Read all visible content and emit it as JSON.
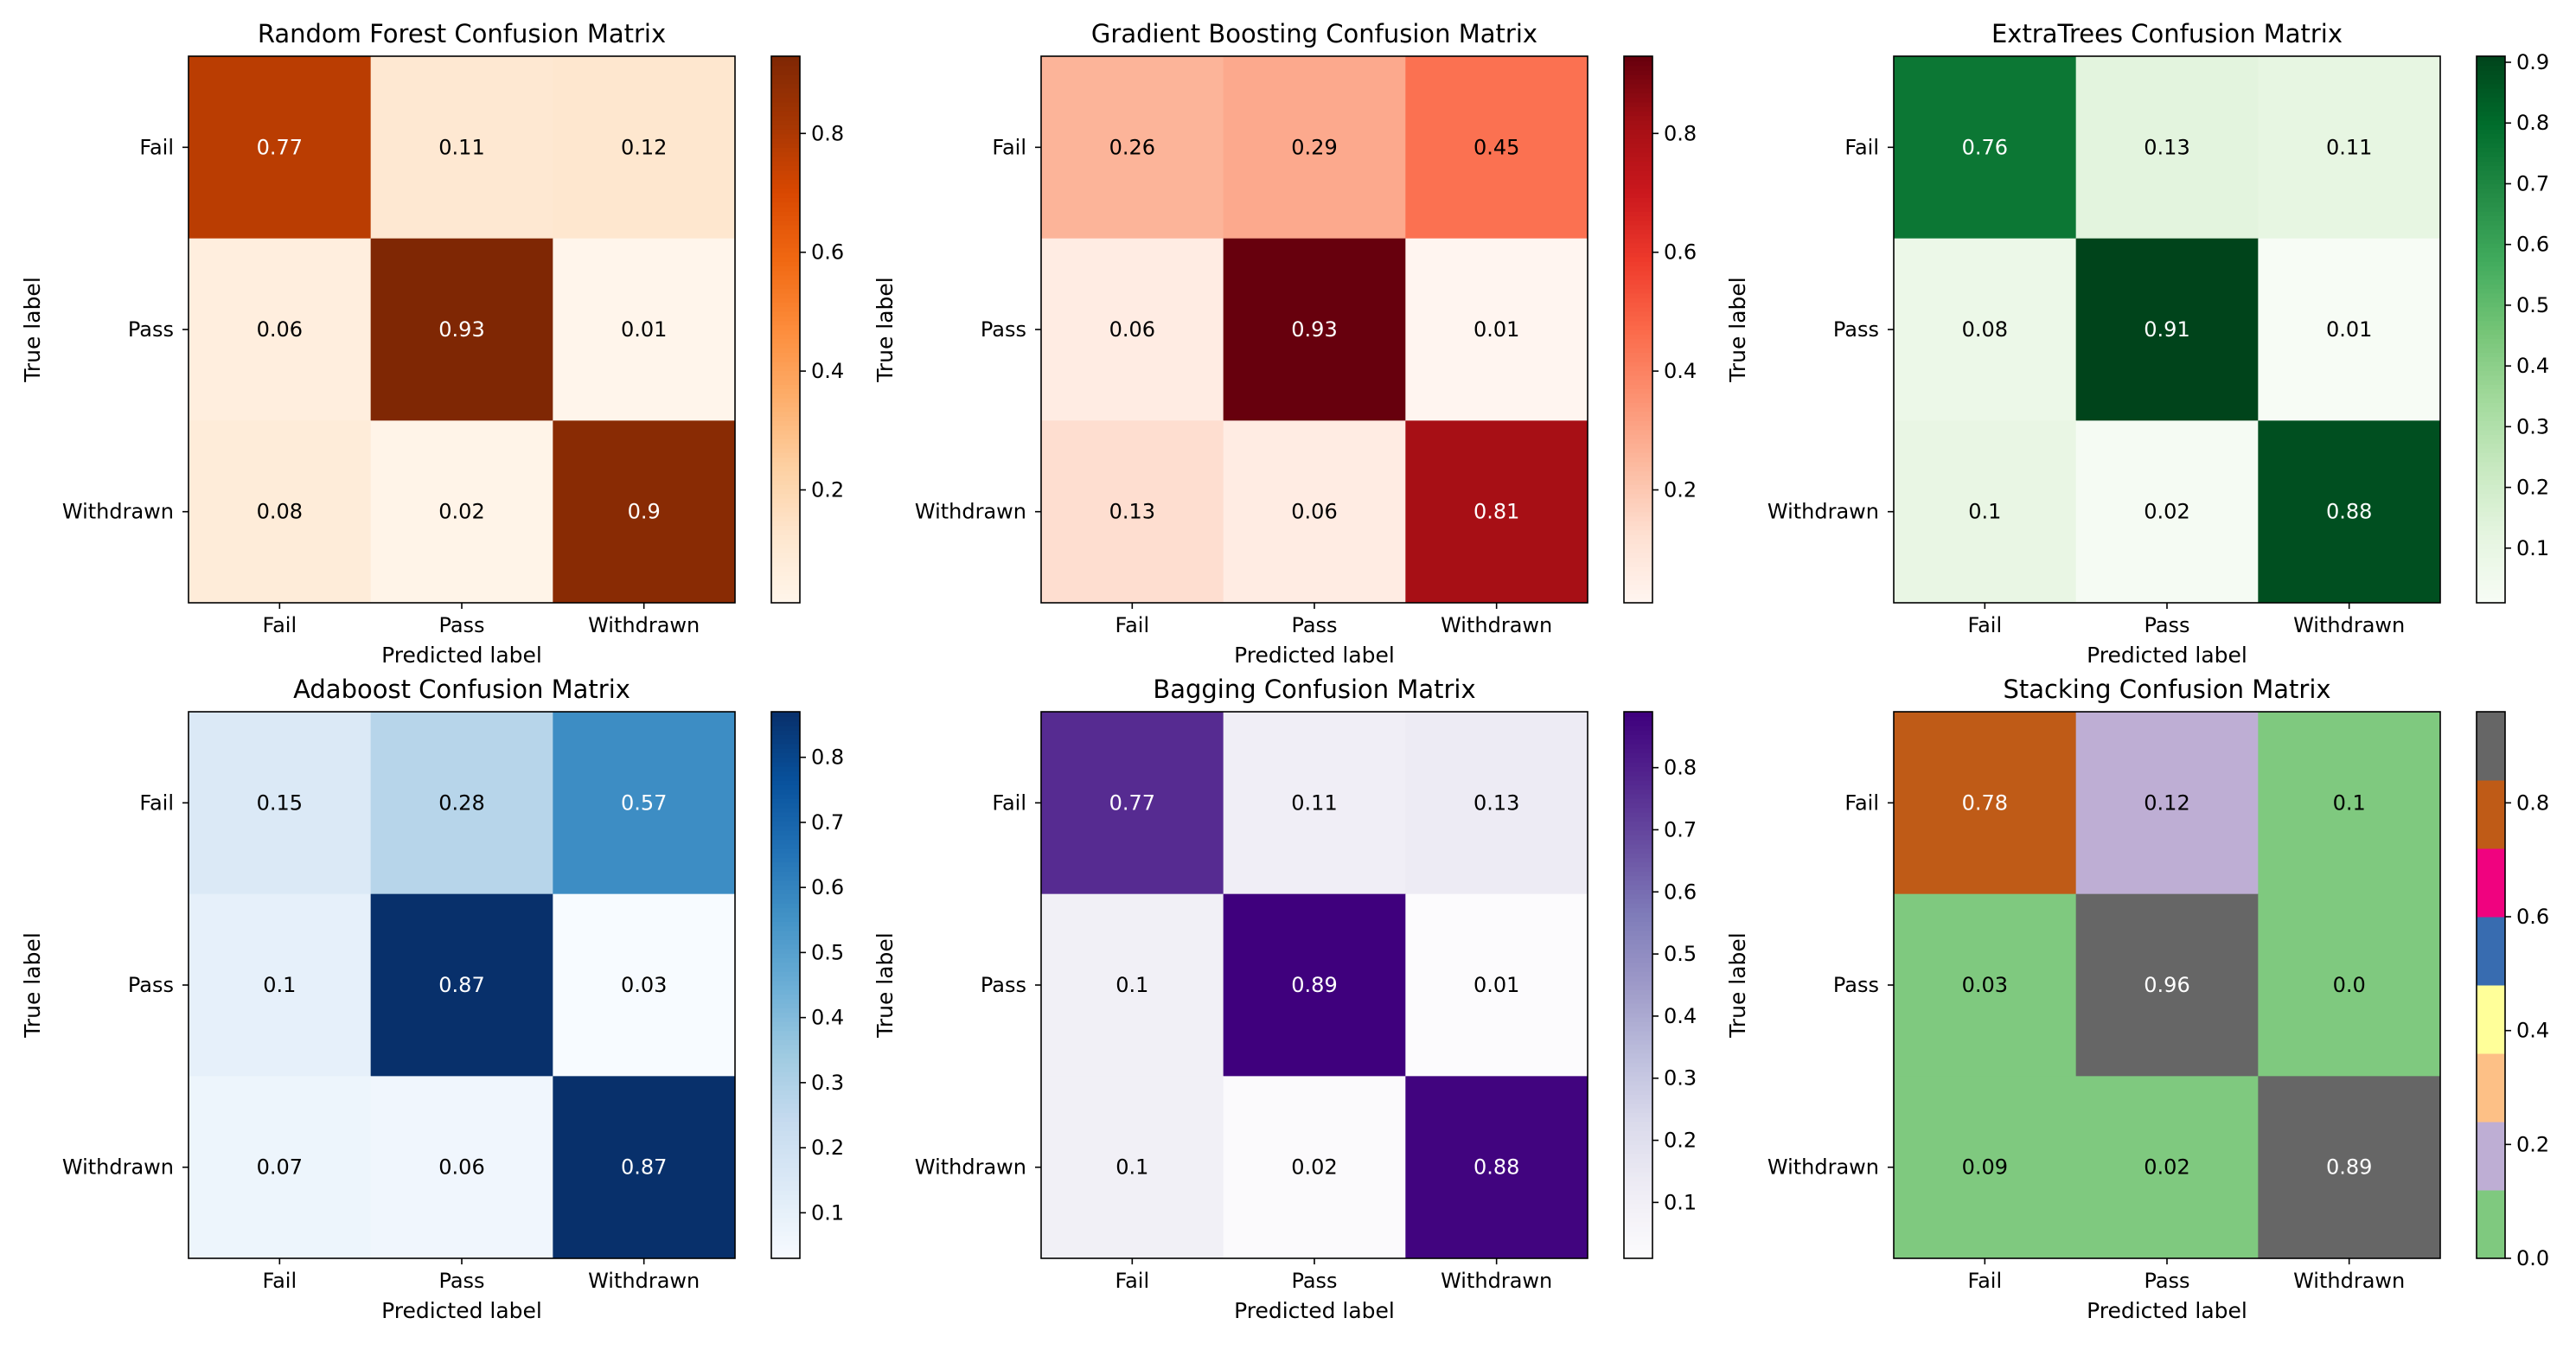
{
  "chart_data": [
    {
      "type": "heatmap",
      "title": "Random Forest Confusion Matrix",
      "xlabel": "Predicted label",
      "ylabel": "True label",
      "x_categories": [
        "Fail",
        "Pass",
        "Withdrawn"
      ],
      "y_categories": [
        "Fail",
        "Pass",
        "Withdrawn"
      ],
      "values": [
        [
          0.77,
          0.11,
          0.12
        ],
        [
          0.06,
          0.93,
          0.01
        ],
        [
          0.08,
          0.02,
          0.9
        ]
      ],
      "cell_labels": [
        [
          "0.77",
          "0.11",
          "0.12"
        ],
        [
          "0.06",
          "0.93",
          "0.01"
        ],
        [
          "0.08",
          "0.02",
          "0.9"
        ]
      ],
      "colormap": "Oranges",
      "color_stops": [
        "#fff5eb",
        "#fee6ce",
        "#fdd0a2",
        "#fdae6b",
        "#fd8d3c",
        "#f16913",
        "#d94801",
        "#a63603",
        "#7f2704"
      ],
      "colorbar": {
        "range": [
          0.01,
          0.93
        ],
        "ticks": [
          0.2,
          0.4,
          0.6,
          0.8
        ],
        "tick_labels": [
          "0.2",
          "0.4",
          "0.6",
          "0.8"
        ]
      }
    },
    {
      "type": "heatmap",
      "title": "Gradient Boosting Confusion Matrix",
      "xlabel": "Predicted label",
      "ylabel": "True label",
      "x_categories": [
        "Fail",
        "Pass",
        "Withdrawn"
      ],
      "y_categories": [
        "Fail",
        "Pass",
        "Withdrawn"
      ],
      "values": [
        [
          0.26,
          0.29,
          0.45
        ],
        [
          0.06,
          0.93,
          0.01
        ],
        [
          0.13,
          0.06,
          0.81
        ]
      ],
      "cell_labels": [
        [
          "0.26",
          "0.29",
          "0.45"
        ],
        [
          "0.06",
          "0.93",
          "0.01"
        ],
        [
          "0.13",
          "0.06",
          "0.81"
        ]
      ],
      "colormap": "Reds",
      "color_stops": [
        "#fff5f0",
        "#fee0d2",
        "#fcbba1",
        "#fc9272",
        "#fb6a4a",
        "#ef3b2c",
        "#cb181d",
        "#a50f15",
        "#67000d"
      ],
      "colorbar": {
        "range": [
          0.01,
          0.93
        ],
        "ticks": [
          0.2,
          0.4,
          0.6,
          0.8
        ],
        "tick_labels": [
          "0.2",
          "0.4",
          "0.6",
          "0.8"
        ]
      }
    },
    {
      "type": "heatmap",
      "title": "ExtraTrees Confusion Matrix",
      "xlabel": "Predicted label",
      "ylabel": "True label",
      "x_categories": [
        "Fail",
        "Pass",
        "Withdrawn"
      ],
      "y_categories": [
        "Fail",
        "Pass",
        "Withdrawn"
      ],
      "values": [
        [
          0.76,
          0.13,
          0.11
        ],
        [
          0.08,
          0.91,
          0.01
        ],
        [
          0.1,
          0.02,
          0.88
        ]
      ],
      "cell_labels": [
        [
          "0.76",
          "0.13",
          "0.11"
        ],
        [
          "0.08",
          "0.91",
          "0.01"
        ],
        [
          "0.1",
          "0.02",
          "0.88"
        ]
      ],
      "colormap": "Greens",
      "color_stops": [
        "#f7fcf5",
        "#e5f5e0",
        "#c7e9c0",
        "#a1d99b",
        "#74c476",
        "#41ab5d",
        "#238b45",
        "#006d2c",
        "#00441b"
      ],
      "colorbar": {
        "range": [
          0.01,
          0.91
        ],
        "ticks": [
          0.1,
          0.2,
          0.3,
          0.4,
          0.5,
          0.6,
          0.7,
          0.8,
          0.9
        ],
        "tick_labels": [
          "0.1",
          "0.2",
          "0.3",
          "0.4",
          "0.5",
          "0.6",
          "0.7",
          "0.8",
          "0.9"
        ]
      }
    },
    {
      "type": "heatmap",
      "title": "Adaboost Confusion Matrix",
      "xlabel": "Predicted label",
      "ylabel": "True label",
      "x_categories": [
        "Fail",
        "Pass",
        "Withdrawn"
      ],
      "y_categories": [
        "Fail",
        "Pass",
        "Withdrawn"
      ],
      "values": [
        [
          0.15,
          0.28,
          0.57
        ],
        [
          0.1,
          0.87,
          0.03
        ],
        [
          0.07,
          0.06,
          0.87
        ]
      ],
      "cell_labels": [
        [
          "0.15",
          "0.28",
          "0.57"
        ],
        [
          "0.1",
          "0.87",
          "0.03"
        ],
        [
          "0.07",
          "0.06",
          "0.87"
        ]
      ],
      "colormap": "Blues",
      "color_stops": [
        "#f7fbff",
        "#deebf7",
        "#c6dbef",
        "#9ecae1",
        "#6baed6",
        "#4292c6",
        "#2171b5",
        "#08519c",
        "#08306b"
      ],
      "colorbar": {
        "range": [
          0.03,
          0.87
        ],
        "ticks": [
          0.1,
          0.2,
          0.3,
          0.4,
          0.5,
          0.6,
          0.7,
          0.8
        ],
        "tick_labels": [
          "0.1",
          "0.2",
          "0.3",
          "0.4",
          "0.5",
          "0.6",
          "0.7",
          "0.8"
        ]
      }
    },
    {
      "type": "heatmap",
      "title": "Bagging Confusion Matrix",
      "xlabel": "Predicted label",
      "ylabel": "True label",
      "x_categories": [
        "Fail",
        "Pass",
        "Withdrawn"
      ],
      "y_categories": [
        "Fail",
        "Pass",
        "Withdrawn"
      ],
      "values": [
        [
          0.77,
          0.11,
          0.13
        ],
        [
          0.1,
          0.89,
          0.01
        ],
        [
          0.1,
          0.02,
          0.88
        ]
      ],
      "cell_labels": [
        [
          "0.77",
          "0.11",
          "0.13"
        ],
        [
          "0.1",
          "0.89",
          "0.01"
        ],
        [
          "0.1",
          "0.02",
          "0.88"
        ]
      ],
      "colormap": "Purples",
      "color_stops": [
        "#fcfbfd",
        "#efedf5",
        "#dadaeb",
        "#bcbddc",
        "#9e9ac8",
        "#807dba",
        "#6a51a3",
        "#54278f",
        "#3f007d"
      ],
      "colorbar": {
        "range": [
          0.01,
          0.89
        ],
        "ticks": [
          0.1,
          0.2,
          0.3,
          0.4,
          0.5,
          0.6,
          0.7,
          0.8
        ],
        "tick_labels": [
          "0.1",
          "0.2",
          "0.3",
          "0.4",
          "0.5",
          "0.6",
          "0.7",
          "0.8"
        ]
      }
    },
    {
      "type": "heatmap",
      "title": "Stacking Confusion Matrix",
      "xlabel": "Predicted label",
      "ylabel": "True label",
      "x_categories": [
        "Fail",
        "Pass",
        "Withdrawn"
      ],
      "y_categories": [
        "Fail",
        "Pass",
        "Withdrawn"
      ],
      "values": [
        [
          0.78,
          0.12,
          0.1
        ],
        [
          0.03,
          0.96,
          0.0
        ],
        [
          0.09,
          0.02,
          0.89
        ]
      ],
      "cell_labels": [
        [
          "0.78",
          "0.12",
          "0.1"
        ],
        [
          "0.03",
          "0.96",
          "0.0"
        ],
        [
          "0.09",
          "0.02",
          "0.89"
        ]
      ],
      "colormap": "Accent",
      "discrete_colors": [
        "#7fc97f",
        "#beaed4",
        "#fdc086",
        "#ffff99",
        "#386cb0",
        "#f0027f",
        "#bf5b17",
        "#666666"
      ],
      "colorbar": {
        "range": [
          0.0,
          0.96
        ],
        "ticks": [
          0.0,
          0.2,
          0.4,
          0.6,
          0.8
        ],
        "tick_labels": [
          "0.0",
          "0.2",
          "0.4",
          "0.6",
          "0.8"
        ]
      }
    }
  ]
}
